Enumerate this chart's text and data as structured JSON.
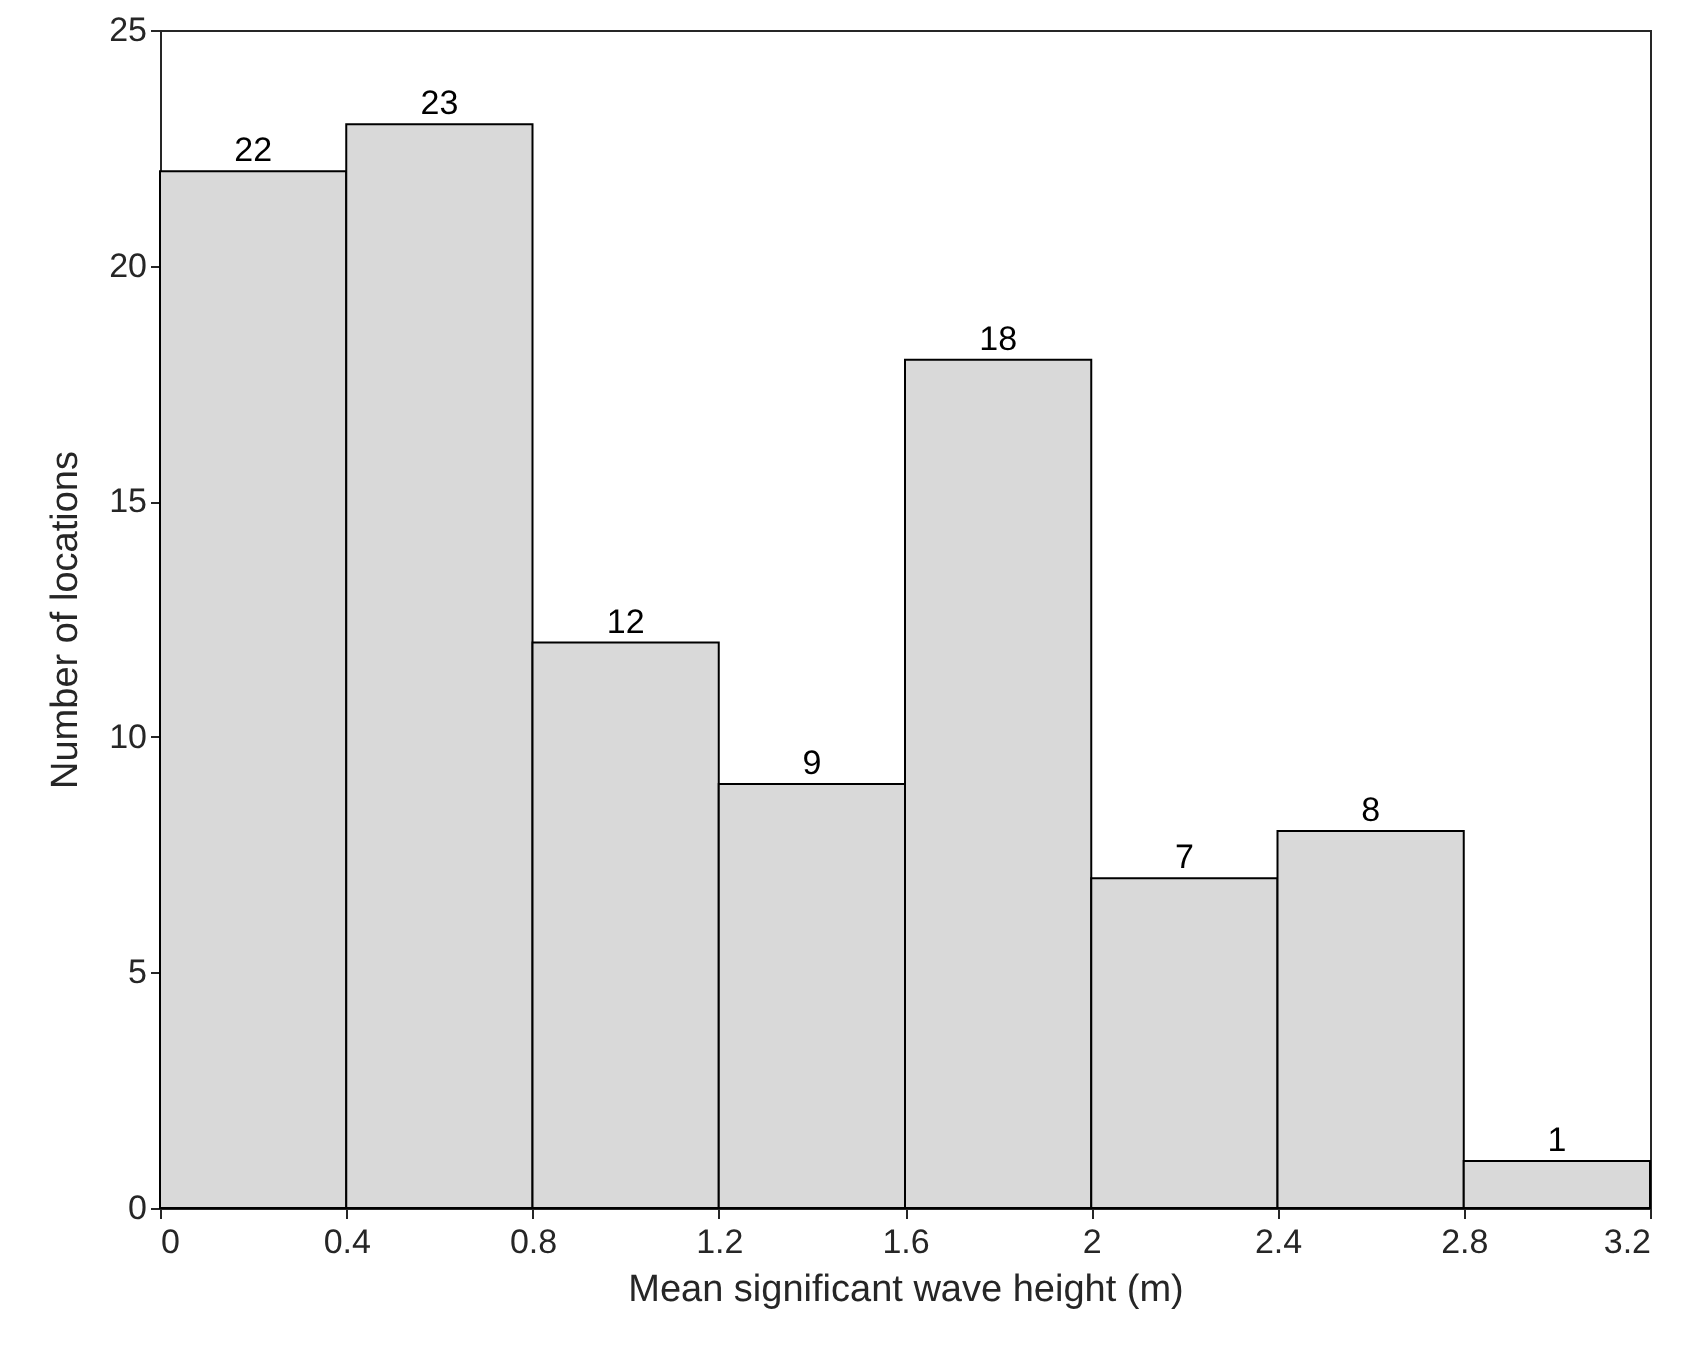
{
  "chart_data": {
    "type": "histogram",
    "xlabel": "Mean significant wave height (m)",
    "ylabel": "Number of locations",
    "bins": [
      0,
      0.4,
      0.8,
      1.2,
      1.6,
      2,
      2.4,
      2.8,
      3.2
    ],
    "values": [
      22,
      23,
      12,
      9,
      18,
      7,
      8,
      1
    ],
    "color": "#d9d9d9",
    "xlim": [
      0,
      3.2
    ],
    "xticks": [
      0,
      0.4,
      0.8,
      1.2,
      1.6,
      2,
      2.4,
      2.8,
      3.2
    ],
    "ylim": [
      0,
      25
    ],
    "yticks": [
      0,
      5,
      10,
      15,
      20,
      25
    ],
    "grid": false,
    "data_labels": true
  }
}
